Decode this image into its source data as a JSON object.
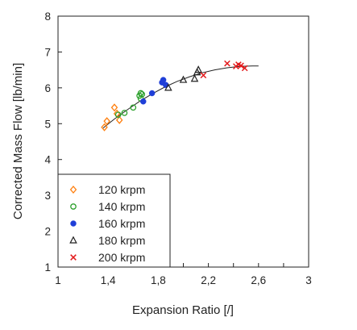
{
  "chart_data": {
    "type": "scatter",
    "xlabel": "Expansion Ratio [/]",
    "ylabel": "Corrected Mass Flow [lb/min]",
    "xlim": [
      1,
      3
    ],
    "ylim": [
      1,
      8
    ],
    "xticks": [
      1,
      1.2,
      1.4,
      1.6,
      1.8,
      2.0,
      2.2,
      2.4,
      2.6,
      2.8,
      3.0
    ],
    "xtick_labels": [
      "1",
      "",
      "1,4",
      "",
      "1,8",
      "",
      "2,2",
      "",
      "2,6",
      "",
      "3"
    ],
    "yticks": [
      1,
      2,
      3,
      4,
      5,
      6,
      7,
      8
    ],
    "ytick_labels": [
      "1",
      "2",
      "3",
      "4",
      "5",
      "6",
      "7",
      "8"
    ],
    "grid": false,
    "legend_position": "bottom-left",
    "series": [
      {
        "name": "120 krpm",
        "marker": "diamond-open",
        "color": "#ff7f0e",
        "points": [
          [
            1.37,
            4.9
          ],
          [
            1.39,
            5.07
          ],
          [
            1.45,
            5.45
          ],
          [
            1.47,
            5.28
          ],
          [
            1.49,
            5.1
          ]
        ]
      },
      {
        "name": "140 krpm",
        "marker": "circle-open",
        "color": "#2ca02c",
        "points": [
          [
            1.48,
            5.25
          ],
          [
            1.53,
            5.3
          ],
          [
            1.6,
            5.45
          ],
          [
            1.65,
            5.78
          ],
          [
            1.66,
            5.85
          ],
          [
            1.67,
            5.82
          ],
          [
            1.66,
            5.7
          ]
        ]
      },
      {
        "name": "160 krpm",
        "marker": "circle-filled",
        "color": "#1f3fd8",
        "points": [
          [
            1.68,
            5.62
          ],
          [
            1.75,
            5.85
          ],
          [
            1.83,
            6.15
          ],
          [
            1.84,
            6.22
          ],
          [
            1.86,
            6.08
          ]
        ]
      },
      {
        "name": "180 krpm",
        "marker": "triangle-open",
        "color": "#222222",
        "points": [
          [
            1.88,
            6.0
          ],
          [
            2.0,
            6.22
          ],
          [
            2.09,
            6.25
          ],
          [
            2.11,
            6.43
          ],
          [
            2.12,
            6.5
          ]
        ]
      },
      {
        "name": "200 krpm",
        "marker": "x",
        "color": "#e31a1c",
        "points": [
          [
            2.16,
            6.35
          ],
          [
            2.35,
            6.68
          ],
          [
            2.42,
            6.6
          ],
          [
            2.44,
            6.65
          ],
          [
            2.46,
            6.62
          ],
          [
            2.49,
            6.55
          ]
        ]
      }
    ],
    "fit_curve": {
      "color": "#222222",
      "points": [
        [
          1.36,
          4.88
        ],
        [
          1.45,
          5.13
        ],
        [
          1.55,
          5.38
        ],
        [
          1.65,
          5.62
        ],
        [
          1.75,
          5.83
        ],
        [
          1.85,
          6.02
        ],
        [
          1.95,
          6.18
        ],
        [
          2.05,
          6.31
        ],
        [
          2.15,
          6.42
        ],
        [
          2.25,
          6.5
        ],
        [
          2.35,
          6.56
        ],
        [
          2.45,
          6.6
        ],
        [
          2.55,
          6.61
        ],
        [
          2.6,
          6.61
        ]
      ]
    }
  }
}
